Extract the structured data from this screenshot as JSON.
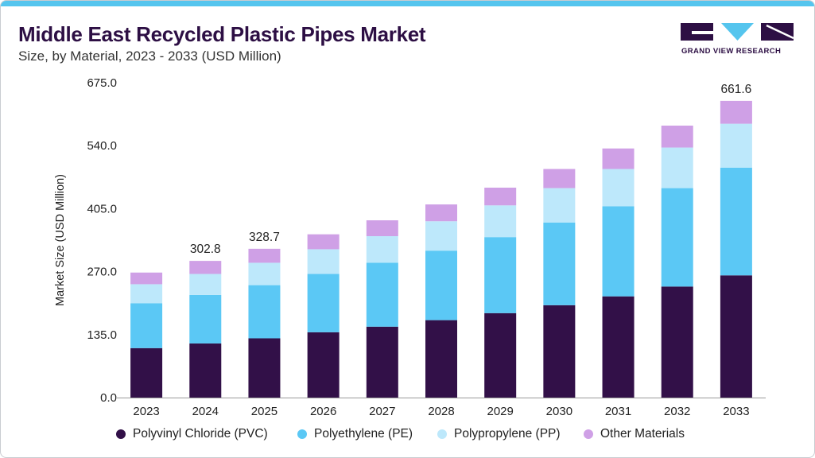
{
  "header": {
    "title": "Middle East Recycled Plastic Pipes Market",
    "subtitle": "Size, by Material, 2023 - 2033 (USD Million)"
  },
  "logo": {
    "text": "GRAND VIEW RESEARCH",
    "color": "#2d0f44",
    "accent": "#55c5ee"
  },
  "chart_data": {
    "type": "bar",
    "stacked": true,
    "categories": [
      "2023",
      "2024",
      "2025",
      "2026",
      "2027",
      "2028",
      "2029",
      "2030",
      "2031",
      "2032",
      "2033"
    ],
    "series": [
      {
        "name": "Polyvinyl Chloride (PVC)",
        "color": "#321048",
        "values": [
          106,
          116,
          127,
          140,
          152,
          166,
          181,
          198,
          217,
          238,
          262
        ]
      },
      {
        "name": "Polyethylene (PE)",
        "color": "#5bc8f5",
        "values": [
          96,
          104,
          114,
          125,
          137,
          149,
          163,
          177,
          193,
          211,
          231
        ]
      },
      {
        "name": "Polypropylene (PP)",
        "color": "#bde8fb",
        "values": [
          41,
          45,
          48,
          53,
          57,
          63,
          68,
          74,
          80,
          87,
          94
        ]
      },
      {
        "name": "Other Materials",
        "color": "#cfa0e6",
        "values": [
          25,
          28,
          30,
          32,
          34,
          36,
          38,
          41,
          44,
          47,
          49
        ]
      }
    ],
    "total_labels": [
      {
        "category": "2024",
        "text": "302.8"
      },
      {
        "category": "2025",
        "text": "328.7"
      },
      {
        "category": "2033",
        "text": "661.6"
      }
    ],
    "ylabel": "Market Size (USD Million)",
    "xlabel": "",
    "ylim": [
      0,
      675
    ],
    "yticks": [
      "0.0",
      "135.0",
      "270.0",
      "405.0",
      "540.0",
      "675.0"
    ],
    "grid": false,
    "legend_position": "bottom"
  }
}
